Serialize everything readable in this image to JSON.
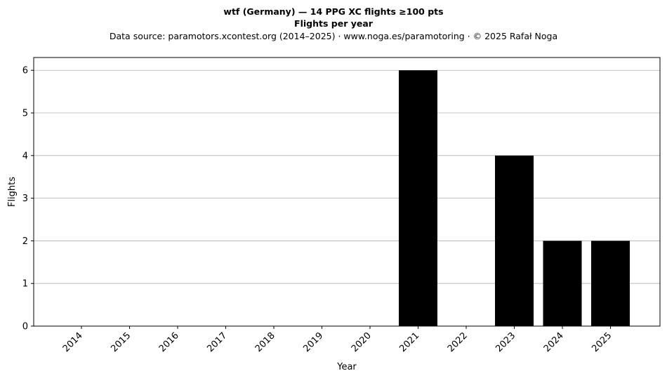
{
  "header": {
    "title": "wtf (Germany)  —  14 PPG XC flights ≥100 pts",
    "subtitle": "Flights per year",
    "source": "Data source: paramotors.xcontest.org (2014–2025)  ·  www.noga.es/paramotoring  ·  © 2025 Rafał Noga"
  },
  "chart_data": {
    "type": "bar",
    "title": "wtf (Germany)  —  14 PPG XC flights ≥100 pts",
    "subtitle": "Flights per year",
    "xlabel": "Year",
    "ylabel": "Flights",
    "categories": [
      "2014",
      "2015",
      "2016",
      "2017",
      "2018",
      "2019",
      "2020",
      "2021",
      "2022",
      "2023",
      "2024",
      "2025"
    ],
    "values": [
      0,
      0,
      0,
      0,
      0,
      0,
      0,
      6,
      0,
      4,
      2,
      2
    ],
    "ylim": [
      0,
      6.3
    ],
    "yticks": [
      0,
      1,
      2,
      3,
      4,
      5,
      6
    ],
    "grid": "y",
    "bar_color": "#000000"
  }
}
